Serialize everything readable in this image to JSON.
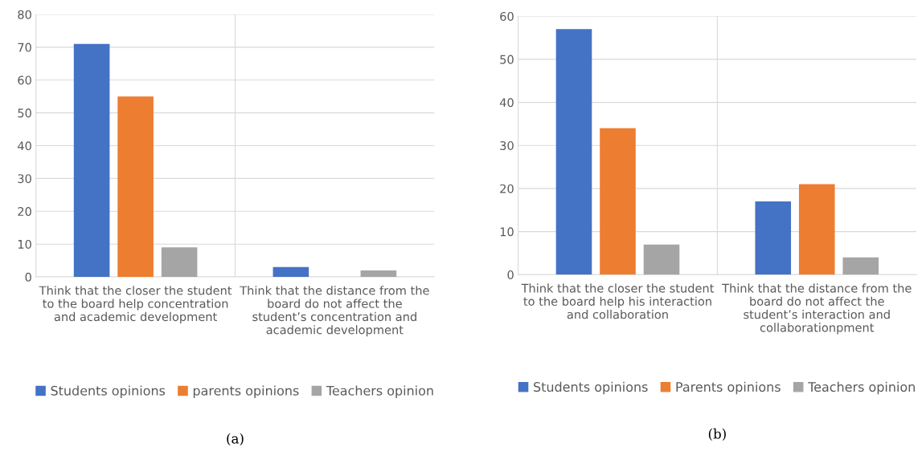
{
  "chart_data": [
    {
      "type": "bar",
      "categories": [
        "Think that the closer the student\nto the board help concentration\nand academic development",
        "Think that the distance from the\nboard do not affect the\nstudent’s concentration and\nacademic development"
      ],
      "series": [
        {
          "name": "Students opinions",
          "color": "#4472c4",
          "values": [
            71,
            3
          ]
        },
        {
          "name": "parents opinions",
          "color": "#ed7d31",
          "values": [
            55,
            0
          ]
        },
        {
          "name": "Teachers opinion",
          "color": "#a5a5a5",
          "values": [
            9,
            2
          ]
        }
      ],
      "ylim": [
        0,
        80
      ],
      "yticks": [
        0,
        10,
        20,
        30,
        40,
        50,
        60,
        70,
        80
      ],
      "grid": true,
      "legend": "bottom",
      "annotations": [
        "(a)"
      ]
    },
    {
      "type": "bar",
      "categories": [
        "Think that the closer the student\nto the board help his interaction\nand collaboration",
        "Think that the distance from the\nboard do not affect the\nstudent’s interaction and\ncollaborationpment"
      ],
      "series": [
        {
          "name": "Students opinions",
          "color": "#4472c4",
          "values": [
            57,
            17
          ]
        },
        {
          "name": "Parents opinions",
          "color": "#ed7d31",
          "values": [
            34,
            21
          ]
        },
        {
          "name": "Teachers opinion",
          "color": "#a5a5a5",
          "values": [
            7,
            4
          ]
        }
      ],
      "ylim": [
        0,
        60
      ],
      "yticks": [
        0,
        10,
        20,
        30,
        40,
        50,
        60
      ],
      "grid": true,
      "legend": "bottom",
      "annotations": [
        "(b)"
      ]
    }
  ]
}
